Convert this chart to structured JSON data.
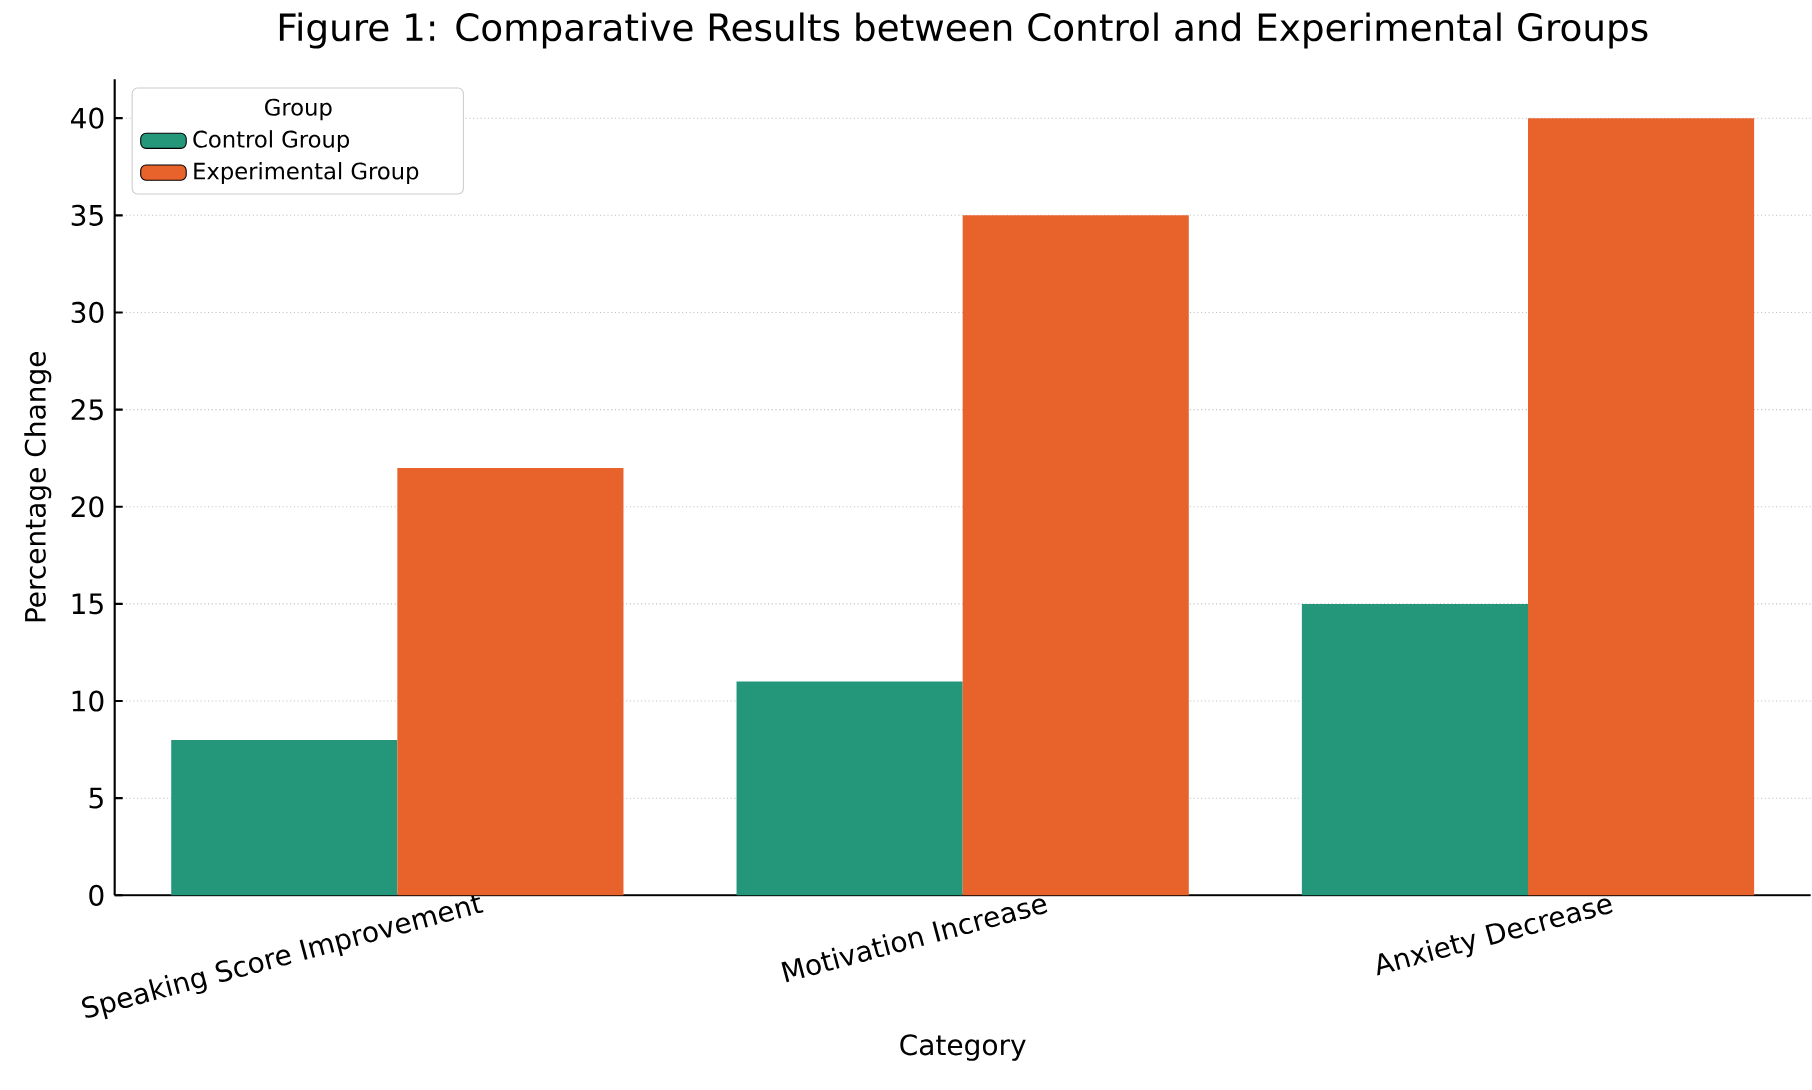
{
  "chart_data": {
    "type": "bar",
    "title": "Figure 1: Comparative Results between Control and Experimental Groups",
    "xlabel": "Category",
    "ylabel": "Percentage Change",
    "legend_title": "Group",
    "categories": [
      "Speaking Score Improvement",
      "Motivation Increase",
      "Anxiety Decrease"
    ],
    "series": [
      {
        "name": "Control Group",
        "color": "#24967a",
        "values": [
          8,
          11,
          15
        ]
      },
      {
        "name": "Experimental Group",
        "color": "#e8622c",
        "values": [
          22,
          35,
          40
        ]
      }
    ],
    "ylim": [
      0,
      42
    ],
    "yticks": [
      0,
      5,
      10,
      15,
      20,
      25,
      30,
      35,
      40
    ],
    "grid": "y",
    "legend": "top left"
  }
}
